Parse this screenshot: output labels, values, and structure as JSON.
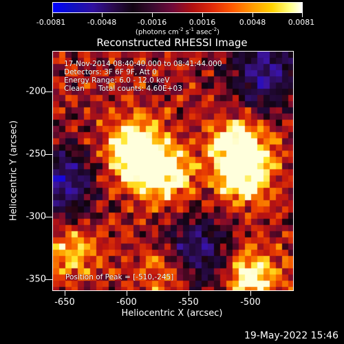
{
  "colorbar": {
    "tick_labels": [
      "-0.0081",
      "-0.0048",
      "-0.0016",
      "0.0016",
      "0.0048",
      "0.0081"
    ],
    "units_prefix": "(photons cm",
    "units_exp1": "-2",
    "units_mid1": " s",
    "units_exp2": "-1",
    "units_mid2": " asec",
    "units_exp3": "-2",
    "units_suffix": ")"
  },
  "title": "Reconstructed RHESSI Image",
  "annotations": {
    "line1": "17-Nov-2014 08:40:40.000 to 08:41:44.000",
    "line2": "Detectors: 3F 6F 9F, Att 0",
    "line3": "Energy Range: 6.0 - 12.0 keV",
    "line4_a": "Clean",
    "line4_b": "Total counts: 4.60E+03",
    "peak": "Position of Peak = [-510,-245]"
  },
  "axes": {
    "xlabel": "Heliocentric X (arcsec)",
    "ylabel": "Heliocentric Y (arcsec)",
    "xticks": [
      "-650",
      "-600",
      "-550",
      "-500"
    ],
    "yticks": [
      "-200",
      "-250",
      "-300",
      "-350"
    ]
  },
  "timestamp": "19-May-2022 15:46",
  "chart_data": {
    "type": "heatmap",
    "title": "Reconstructed RHESSI Image",
    "xlabel": "Heliocentric X (arcsec)",
    "ylabel": "Heliocentric Y (arcsec)",
    "xlim": [
      -660,
      -465
    ],
    "ylim": [
      -362,
      -168
    ],
    "colorbar_range": [
      -0.0081,
      0.0081
    ],
    "colormap": "blue-purple-black-red-orange-yellow-white",
    "peak_position": [
      -510,
      -245
    ],
    "bright_regions": [
      {
        "x": -595,
        "y": -245,
        "level": "high"
      },
      {
        "x": -585,
        "y": -260,
        "level": "high"
      },
      {
        "x": -510,
        "y": -245,
        "level": "peak"
      },
      {
        "x": -505,
        "y": -270,
        "level": "high"
      },
      {
        "x": -645,
        "y": -330,
        "level": "medium"
      },
      {
        "x": -570,
        "y": -345,
        "level": "medium"
      },
      {
        "x": -500,
        "y": -350,
        "level": "high"
      },
      {
        "x": -565,
        "y": -270,
        "level": "medium"
      }
    ],
    "dark_regions": [
      {
        "x": -490,
        "y": -185,
        "level": "negative"
      },
      {
        "x": -655,
        "y": -275,
        "level": "negative"
      },
      {
        "x": -545,
        "y": -330,
        "level": "negative"
      }
    ]
  }
}
